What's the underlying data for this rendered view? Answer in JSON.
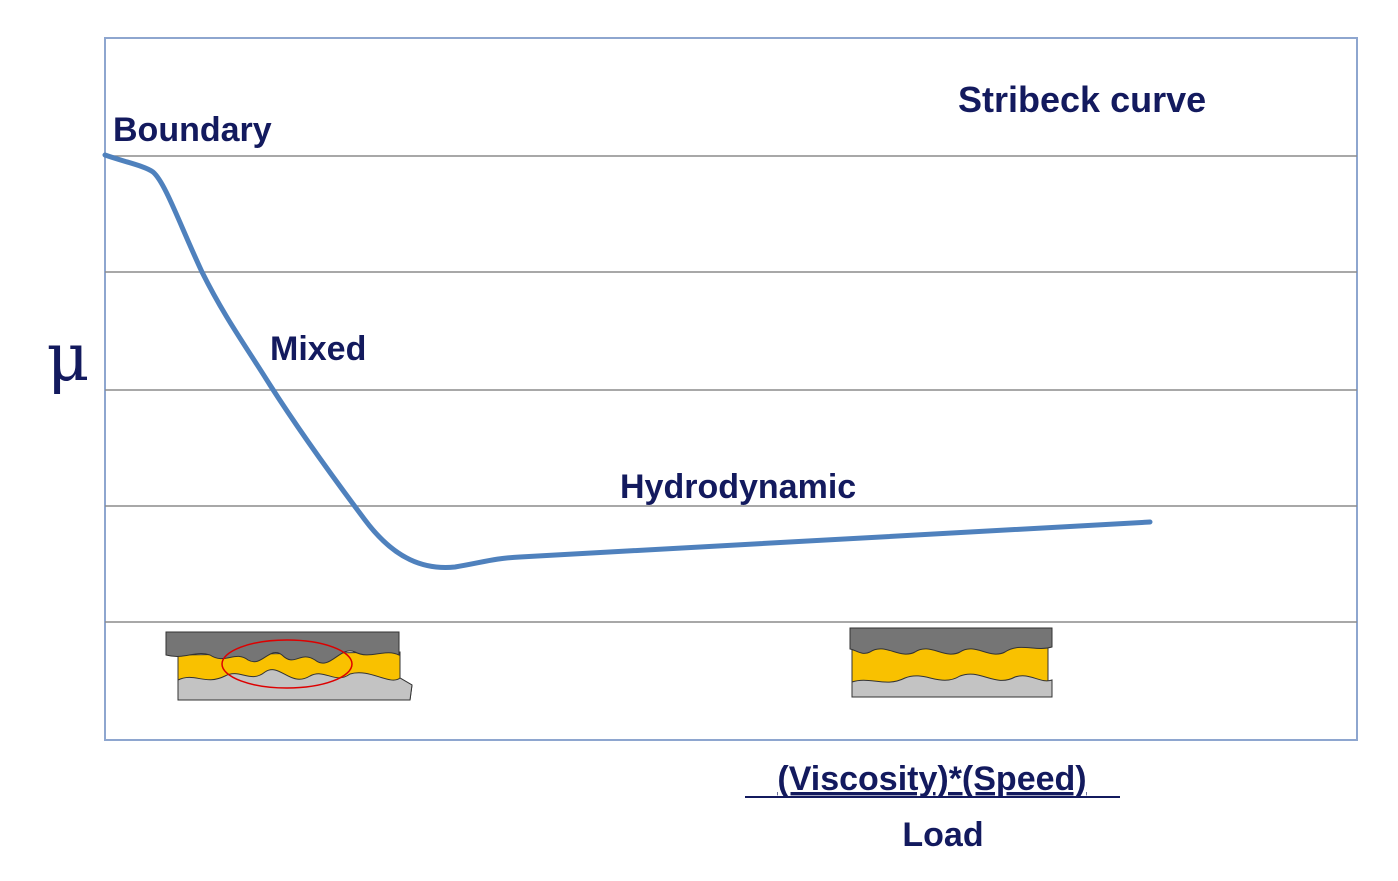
{
  "title": "Stribeck curve",
  "regimes": {
    "boundary": "Boundary",
    "mixed": "Mixed",
    "hydrodynamic": "Hydrodynamic"
  },
  "y_axis_label": "μ",
  "x_axis_label": {
    "numerator": "(Viscosity)*(Speed)",
    "denominator": "Load"
  }
}
